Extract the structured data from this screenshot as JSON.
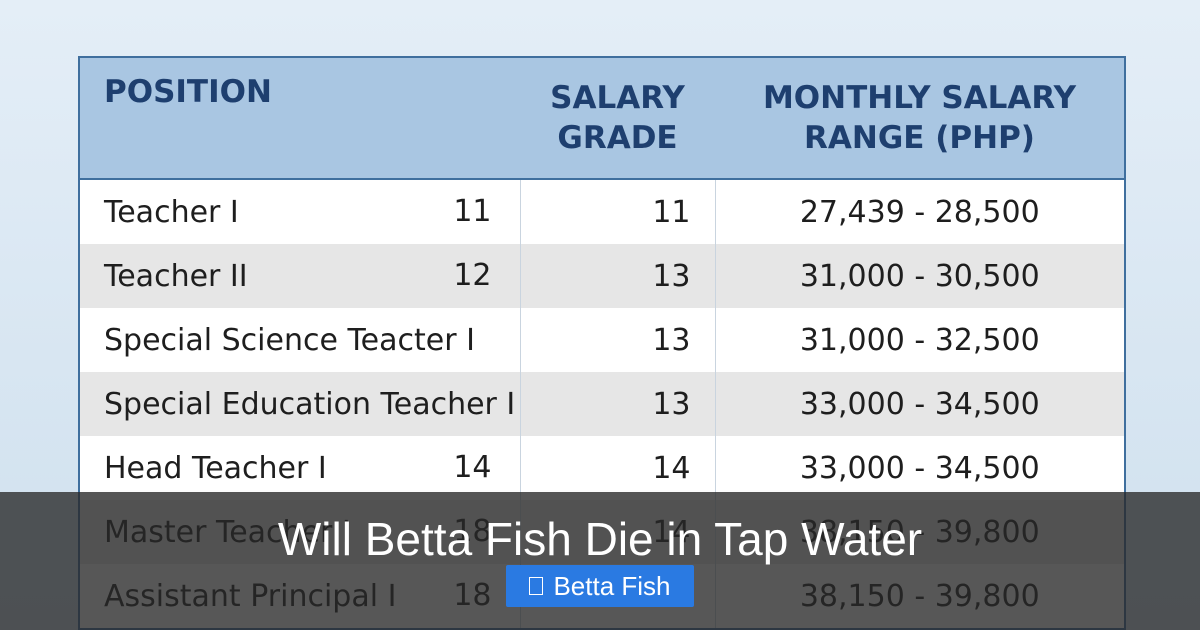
{
  "table": {
    "headers": [
      "POSITION",
      "SALARY GRADE",
      "MONTHLY SALARY RANGE (PHP)"
    ],
    "rows": [
      {
        "position": "Teacher I",
        "stray": "11",
        "grade": "11",
        "range": "27,439 - 28,500"
      },
      {
        "position": "Teacher II",
        "stray": "12",
        "grade": "13",
        "range": "31,000 - 30,500"
      },
      {
        "position": "Special Science Teacter I",
        "stray": "",
        "grade": "13",
        "range": "31,000 - 32,500"
      },
      {
        "position": "Special Education Teacher I",
        "stray": "",
        "grade": "13",
        "range": "33,000 - 34,500"
      },
      {
        "position": "Head Teacher I",
        "stray": "14",
        "grade": "14",
        "range": "33,000 - 34,500"
      },
      {
        "position": "Master Teacher I",
        "stray": "18",
        "grade": "14",
        "range": "38,150 - 39,800"
      },
      {
        "position": "Assistant Principal I",
        "stray": "18",
        "grade": "",
        "range": "38,150 - 39,800"
      }
    ]
  },
  "overlay": {
    "title": "Will Betta Fish Die in Tap Water",
    "tag_label": "Betta Fish",
    "tag_icon": "folder-icon"
  },
  "colors": {
    "header_bg": "#a9c6e2",
    "header_text": "#1e3f6f",
    "tag_bg": "#2a7ae2"
  }
}
